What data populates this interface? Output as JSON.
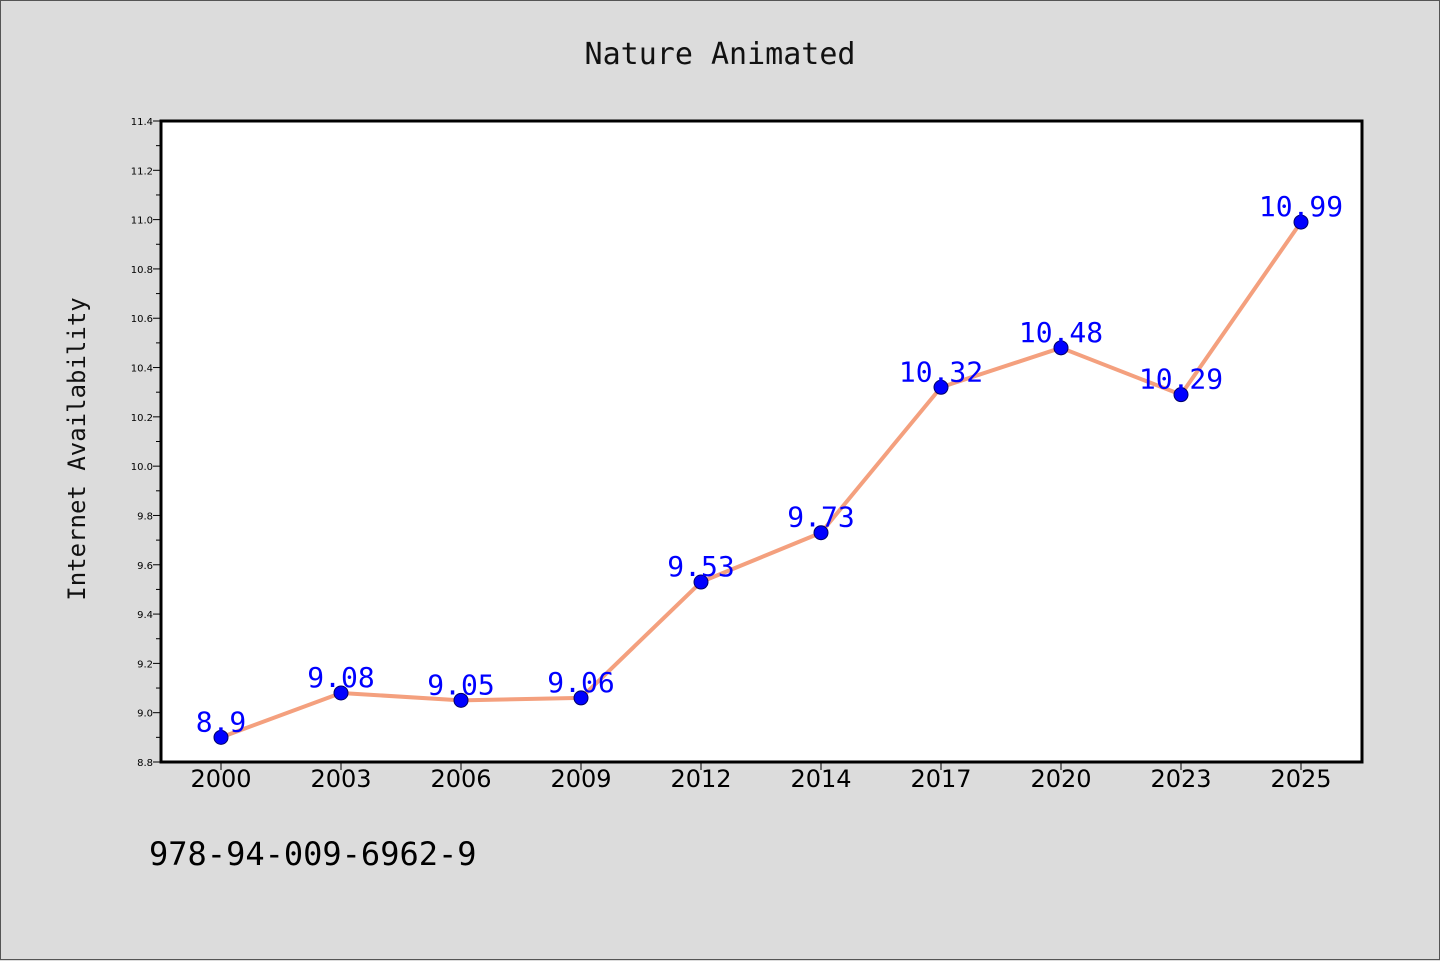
{
  "chart_data": {
    "type": "line",
    "title": "Nature Animated",
    "xlabel": "",
    "ylabel": "Internet Availability",
    "categories": [
      "2000",
      "2003",
      "2006",
      "2009",
      "2012",
      "2014",
      "2017",
      "2020",
      "2023",
      "2025"
    ],
    "series": [
      {
        "values": [
          8.9,
          9.08,
          9.05,
          9.06,
          9.53,
          9.73,
          10.32,
          10.48,
          10.29,
          10.99
        ],
        "data_labels": [
          "8.9",
          "9.08",
          "9.05",
          "9.06",
          "9.53",
          "9.73",
          "10.32",
          "10.48",
          "10.29",
          "10.99"
        ]
      }
    ],
    "ylim": [
      8.8,
      11.4
    ],
    "yticks": [
      "8.8",
      "9.0",
      "9.2",
      "9.4",
      "9.6",
      "9.8",
      "10.0",
      "10.2",
      "10.4",
      "10.6",
      "10.8",
      "11.0",
      "11.2",
      "11.4"
    ],
    "grid": false,
    "legend": "none",
    "colors": {
      "line": "#f4a07e",
      "marker": "#0000ff",
      "marker_edge": "#000066",
      "data_label": "#0000ff",
      "plot_background": "#ffffff",
      "figure_background": "#dcdcdc"
    }
  },
  "footnote": "978-94-009-6962-9"
}
